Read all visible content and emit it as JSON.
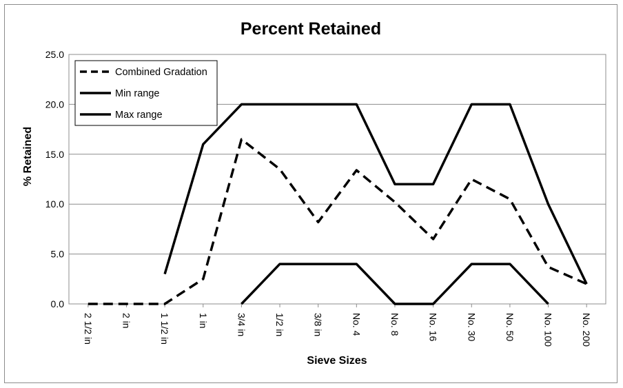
{
  "chart_data": {
    "type": "line",
    "title": "Percent Retained",
    "xlabel": "Sieve Sizes",
    "ylabel": "% Retained",
    "ylim": [
      0,
      25
    ],
    "yticks": [
      "0.0",
      "5.0",
      "10.0",
      "15.0",
      "20.0",
      "25.0"
    ],
    "categories": [
      "2 1/2 in",
      "2 in",
      "1 1/2 in",
      "1 in",
      "3/4 in",
      "1/2 in",
      "3/8 in",
      "No. 4",
      "No. 8",
      "No. 16",
      "No. 30",
      "No. 50",
      "No. 100",
      "No. 200"
    ],
    "grid": true,
    "legend_position": "top-left",
    "series": [
      {
        "name": "Combined Gradation",
        "style": "dashed",
        "color": "#000000",
        "values": [
          0,
          0,
          0,
          2.5,
          16.5,
          13.5,
          8.2,
          13.4,
          10.2,
          6.5,
          12.5,
          10.5,
          3.7,
          2.0
        ]
      },
      {
        "name": "Min range",
        "style": "solid",
        "color": "#000000",
        "values": [
          null,
          null,
          null,
          null,
          0,
          4,
          4,
          4,
          0,
          0,
          4,
          4,
          0,
          null
        ]
      },
      {
        "name": "Max range",
        "style": "solid",
        "color": "#000000",
        "values": [
          null,
          null,
          3,
          16,
          20,
          20,
          20,
          20,
          12,
          12,
          20,
          20,
          10,
          2
        ]
      }
    ]
  }
}
